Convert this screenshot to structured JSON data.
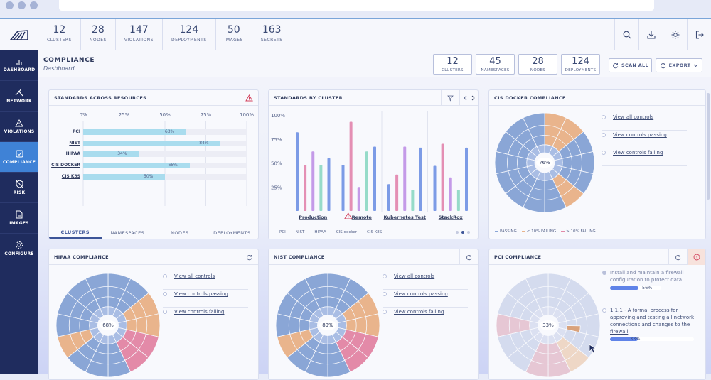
{
  "summary": [
    {
      "num": "12",
      "label": "CLUSTERS"
    },
    {
      "num": "28",
      "label": "NODES"
    },
    {
      "num": "147",
      "label": "VIOLATIONS"
    },
    {
      "num": "124",
      "label": "DEPLOYMENTS"
    },
    {
      "num": "50",
      "label": "IMAGES"
    },
    {
      "num": "163",
      "label": "SECRETS"
    }
  ],
  "nav": [
    {
      "label": "DASHBOARD",
      "icon": "bar-chart-icon"
    },
    {
      "label": "NETWORK",
      "icon": "network-icon"
    },
    {
      "label": "VIOLATIONS",
      "icon": "warning-icon"
    },
    {
      "label": "COMPLIANCE",
      "icon": "checkbox-icon"
    },
    {
      "label": "RISK",
      "icon": "shield-off-icon"
    },
    {
      "label": "IMAGES",
      "icon": "file-icon"
    },
    {
      "label": "CONFIGURE",
      "icon": "gear-icon"
    }
  ],
  "header": {
    "title": "COMPLIANCE",
    "subtitle": "Dashboard",
    "counts": [
      {
        "num": "12",
        "label": "CLUSTERS"
      },
      {
        "num": "45",
        "label": "NAMESPACES"
      },
      {
        "num": "28",
        "label": "NODES"
      },
      {
        "num": "124",
        "label": "DEPLOYMENTS"
      }
    ],
    "scan_label": "SCAN ALL",
    "export_label": "EXPORT"
  },
  "standards_resources": {
    "title": "STANDARDS ACROSS RESOURCES",
    "tabs": [
      "CLUSTERS",
      "NAMESPACES",
      "NODES",
      "DEPLOYMENTS"
    ],
    "active_tab": "CLUSTERS"
  },
  "standards_cluster": {
    "title": "STANDARDS BY CLUSTER"
  },
  "cis_docker": {
    "title": "CIS DOCKER COMPLIANCE",
    "percent": "76%",
    "legend": [
      "PASSING",
      "< 10% FAILING",
      "> 10% FAILING"
    ]
  },
  "hipaa": {
    "title": "HIPAA COMPLIANCE",
    "percent": "68%"
  },
  "nist": {
    "title": "NIST COMPLIANCE",
    "percent": "89%"
  },
  "pci": {
    "title": "PCI COMPLIANCE",
    "percent": "33%",
    "items": [
      {
        "text": "Install and maintain a firewall configuration to protect data",
        "value": "56%",
        "fraction": 0.56
      },
      {
        "text": "1.1.1 - A formal process for approving and testing all network connections and changes to the firewall",
        "value": "33%",
        "fraction": 0.33
      }
    ]
  },
  "links": [
    "View all controls",
    "View controls passing",
    "View controls failing"
  ],
  "colors": {
    "sidebar": "#1f2c5e",
    "active": "#3f82d6",
    "passing": "#8aa6d6",
    "warn": "#e9b48c",
    "fail": "#e38aa8"
  },
  "chart_data": [
    {
      "type": "bar",
      "orientation": "horizontal",
      "title": "STANDARDS ACROSS RESOURCES",
      "categories": [
        "PCI",
        "NIST",
        "HIPAA",
        "CIS DOCKER",
        "CIS K8S"
      ],
      "values": [
        63,
        84,
        34,
        65,
        50
      ],
      "value_labels": [
        "63%",
        "84%",
        "34%",
        "65%",
        "50%"
      ],
      "ticks": [
        "0%",
        "25%",
        "50%",
        "75%",
        "100%"
      ],
      "xlim": [
        0,
        100
      ]
    },
    {
      "type": "bar",
      "title": "STANDARDS BY CLUSTER",
      "categories": [
        "Production",
        "Remote",
        "Kubernetes Test",
        "StackRox"
      ],
      "yticks": [
        "100%",
        "75%",
        "50%",
        "25%"
      ],
      "ylim": [
        0,
        100
      ],
      "series": [
        {
          "name": "PCI",
          "color": "#7c9be6",
          "values": [
            82,
            48,
            28,
            47
          ]
        },
        {
          "name": "NIST",
          "color": "#e48fb4",
          "values": [
            48,
            93,
            38,
            70
          ]
        },
        {
          "name": "HIPAA",
          "color": "#c49ae8",
          "values": [
            62,
            25,
            67,
            35
          ]
        },
        {
          "name": "CIS docker",
          "color": "#96dbc9",
          "values": [
            48,
            62,
            22,
            22
          ]
        },
        {
          "name": "CIS K8S",
          "color": "#7c9be6",
          "values": [
            55,
            67,
            66,
            66
          ]
        }
      ],
      "legend": [
        "PCI",
        "NIST",
        "HIPAA",
        "CIS docker",
        "CIS K8S"
      ]
    }
  ]
}
